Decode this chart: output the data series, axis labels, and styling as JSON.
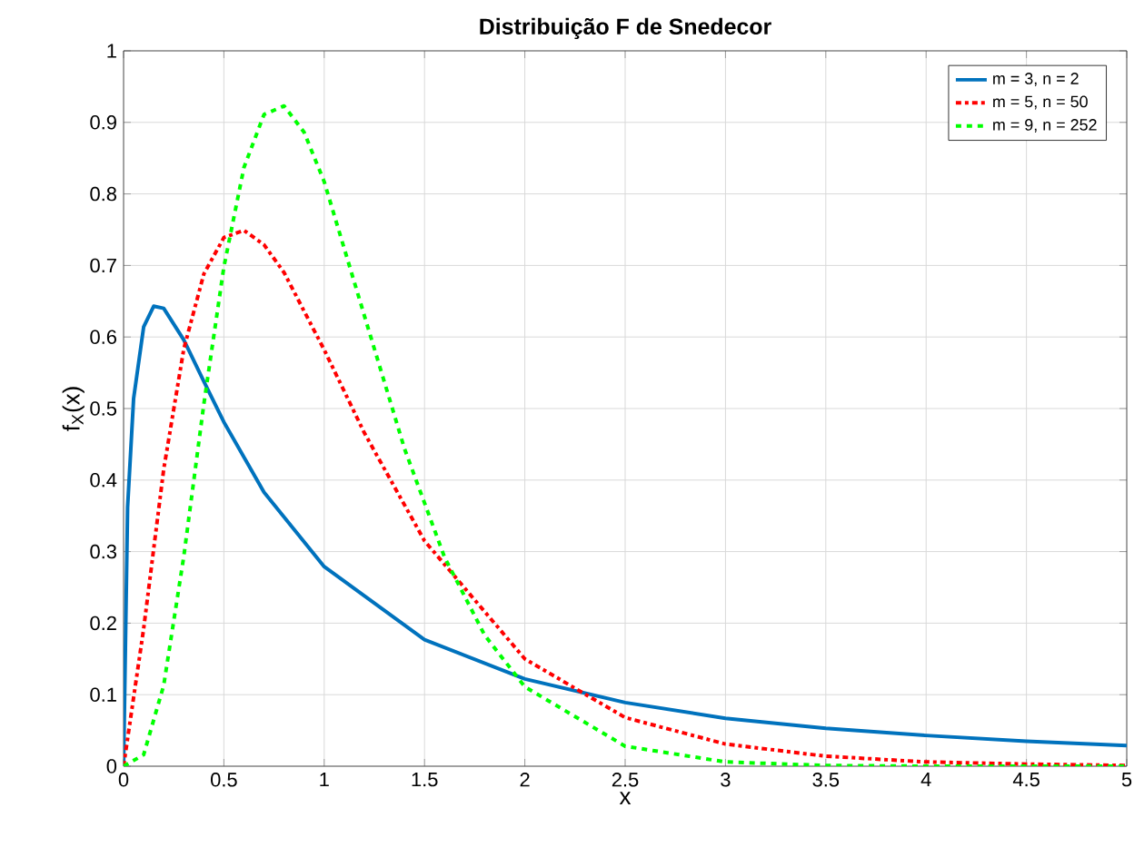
{
  "chart_data": {
    "type": "line",
    "title": "Distribuição F de Snedecor",
    "xlabel": "x",
    "ylabel": "f$_{X}$(x)",
    "xlim": [
      0,
      5
    ],
    "ylim": [
      0,
      1
    ],
    "xticks": [
      0,
      0.5,
      1,
      1.5,
      2,
      2.5,
      3,
      3.5,
      4,
      4.5,
      5
    ],
    "yticks": [
      0,
      0.1,
      0.2,
      0.3,
      0.4,
      0.5,
      0.6,
      0.7,
      0.8,
      0.9,
      1
    ],
    "grid": true,
    "legend": "top right",
    "series": [
      {
        "name": "m = 3, n = 2",
        "color": "#0072bd",
        "line_style": "solid",
        "x": [
          0,
          0.02,
          0.05,
          0.1,
          0.15,
          0.2,
          0.3,
          0.4,
          0.5,
          0.7,
          1,
          1.5,
          2,
          2.5,
          3,
          3.5,
          4,
          4.5,
          5
        ],
        "values": [
          0,
          0.362,
          0.514,
          0.614,
          0.643,
          0.64,
          0.596,
          0.538,
          0.481,
          0.383,
          0.279,
          0.177,
          0.122,
          0.089,
          0.067,
          0.053,
          0.043,
          0.035,
          0.029
        ]
      },
      {
        "name": "m = 5, n = 50",
        "color": "#ff0000",
        "line_style": "dashdot",
        "x": [
          0,
          0.1,
          0.2,
          0.3,
          0.4,
          0.5,
          0.6,
          0.7,
          0.8,
          1,
          1.2,
          1.5,
          2,
          2.5,
          3,
          3.5,
          4,
          4.5,
          5
        ],
        "values": [
          0,
          0.192,
          0.415,
          0.583,
          0.688,
          0.739,
          0.749,
          0.729,
          0.69,
          0.582,
          0.466,
          0.315,
          0.15,
          0.068,
          0.031,
          0.014,
          0.006,
          0.003,
          0.001
        ]
      },
      {
        "name": "m = 9, n = 252",
        "color": "#00ff00",
        "line_style": "dashed",
        "x": [
          0,
          0.1,
          0.2,
          0.3,
          0.4,
          0.5,
          0.6,
          0.7,
          0.8,
          0.9,
          1,
          1.2,
          1.4,
          1.6,
          1.8,
          2,
          2.5,
          3,
          3.5,
          4,
          5
        ],
        "values": [
          0,
          0.016,
          0.113,
          0.293,
          0.506,
          0.698,
          0.837,
          0.911,
          0.923,
          0.886,
          0.817,
          0.63,
          0.444,
          0.292,
          0.183,
          0.111,
          0.028,
          0.006,
          0.001,
          0,
          0
        ]
      }
    ]
  }
}
